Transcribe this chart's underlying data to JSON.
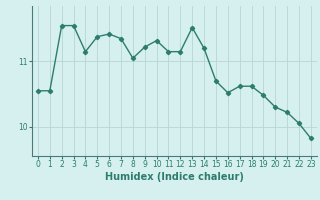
{
  "x": [
    0,
    1,
    2,
    3,
    4,
    5,
    6,
    7,
    8,
    9,
    10,
    11,
    12,
    13,
    14,
    15,
    16,
    17,
    18,
    19,
    20,
    21,
    22,
    23
  ],
  "y": [
    10.55,
    10.55,
    11.55,
    11.55,
    11.15,
    11.38,
    11.42,
    11.35,
    11.05,
    11.22,
    11.32,
    11.15,
    11.15,
    11.52,
    11.2,
    10.7,
    10.52,
    10.62,
    10.62,
    10.48,
    10.3,
    10.22,
    10.05,
    9.82
  ],
  "line_color": "#2d7d6e",
  "marker": "D",
  "marker_size": 2.2,
  "linewidth": 1.0,
  "xlabel": "Humidex (Indice chaleur)",
  "xlabel_fontsize": 7,
  "yticks": [
    10,
    11
  ],
  "ylim": [
    9.55,
    11.85
  ],
  "xlim": [
    -0.5,
    23.5
  ],
  "xtick_labels": [
    "0",
    "1",
    "2",
    "3",
    "4",
    "5",
    "6",
    "7",
    "8",
    "9",
    "10",
    "11",
    "12",
    "13",
    "14",
    "15",
    "16",
    "17",
    "18",
    "19",
    "20",
    "21",
    "22",
    "23"
  ],
  "bg_color": "#d6f0f0",
  "grid_color": "#b8d4d4",
  "tick_fontsize": 5.5,
  "ylabel_fontsize": 7
}
